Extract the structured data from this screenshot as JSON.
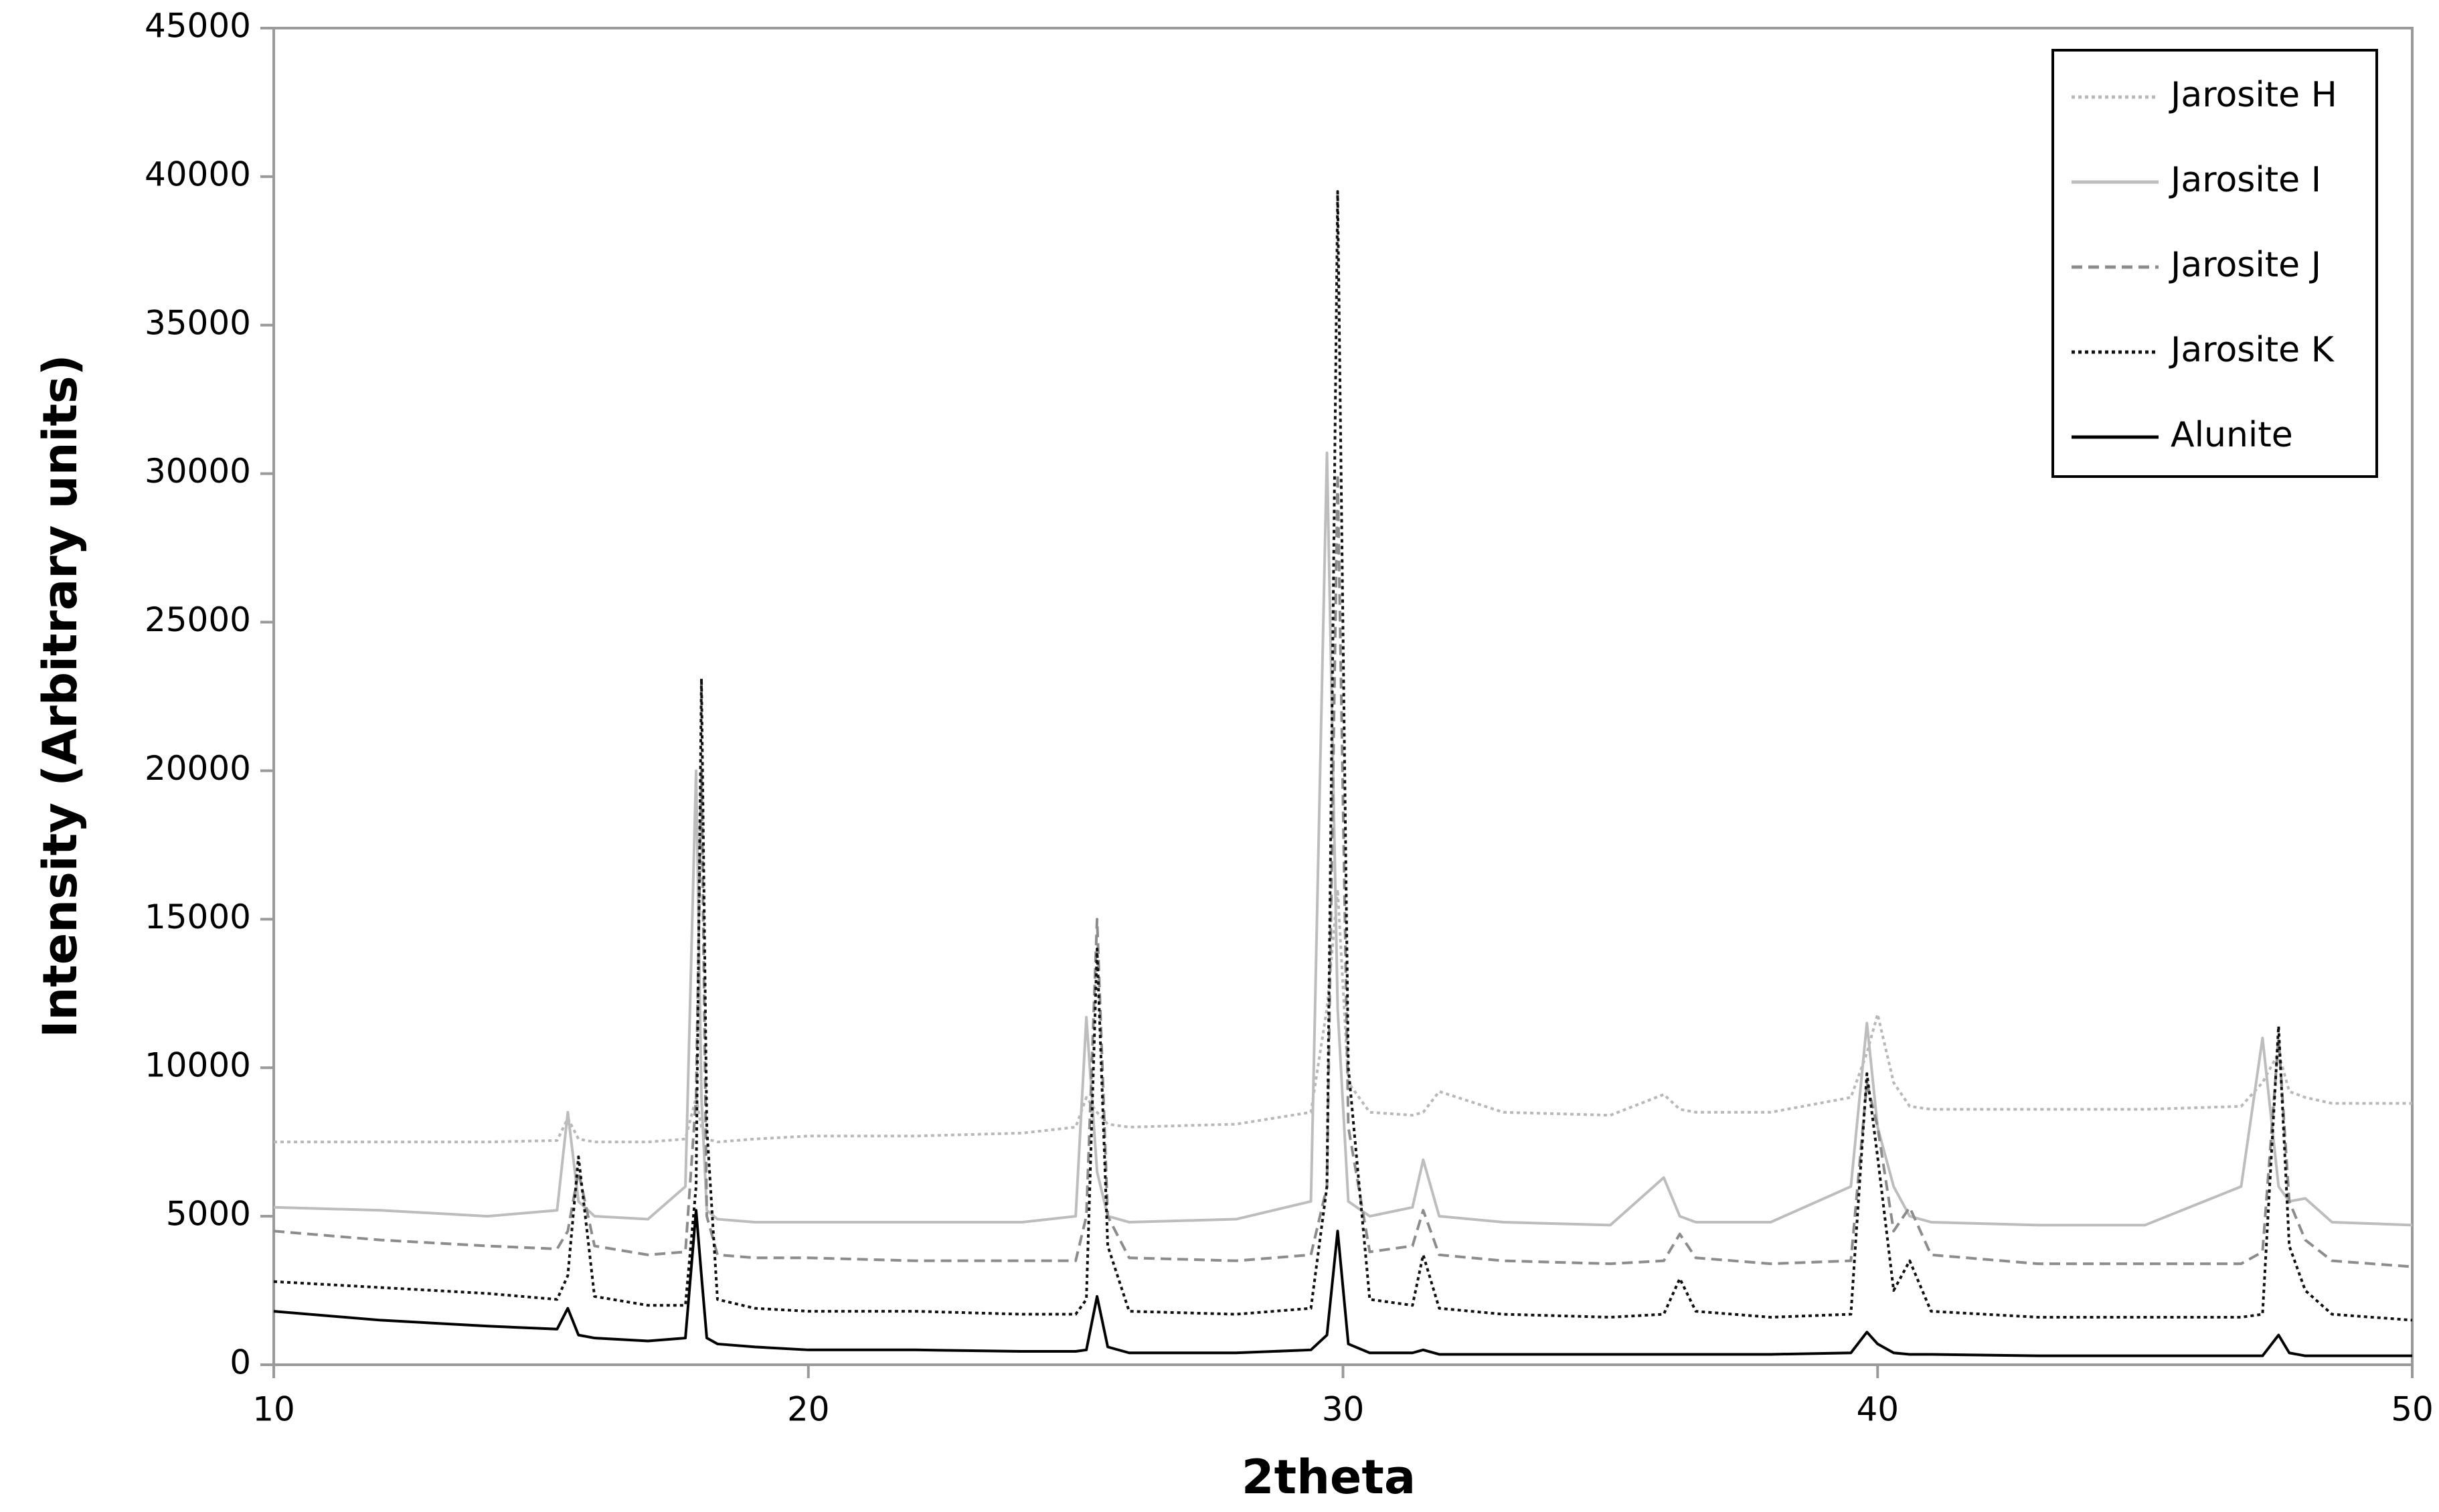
{
  "chart_data": {
    "type": "line",
    "x_label": "2theta",
    "y_label": "Intensity (Arbitrary units)",
    "x": [
      10,
      12,
      14,
      15.3,
      15.5,
      15.7,
      16,
      17,
      17.7,
      17.9,
      18.0,
      18.1,
      18.3,
      19,
      20,
      22,
      24,
      25.0,
      25.2,
      25.4,
      25.6,
      26,
      28,
      29.4,
      29.7,
      29.9,
      30.1,
      30.5,
      31.3,
      31.5,
      31.8,
      33,
      35,
      36.0,
      36.3,
      36.6,
      38,
      39.5,
      39.8,
      40.0,
      40.3,
      40.6,
      41,
      43,
      45,
      46.8,
      47.2,
      47.5,
      47.7,
      48.0,
      48.5,
      50
    ],
    "series": [
      {
        "name": "Jarosite H",
        "color": "#b8b8b8",
        "dash": "dotted",
        "values": [
          7500,
          7500,
          7500,
          7550,
          8300,
          7600,
          7500,
          7500,
          7600,
          9000,
          8000,
          7600,
          7500,
          7600,
          7700,
          7700,
          7800,
          8000,
          9000,
          8500,
          8100,
          8000,
          8100,
          8500,
          12000,
          16000,
          9500,
          8500,
          8400,
          8500,
          9200,
          8500,
          8400,
          9100,
          8600,
          8500,
          8500,
          9000,
          10500,
          11800,
          9500,
          8700,
          8600,
          8600,
          8600,
          8700,
          9500,
          10500,
          9200,
          9000,
          8800,
          8800
        ]
      },
      {
        "name": "Jarosite I",
        "color": "#bdbdbd",
        "dash": "solid",
        "values": [
          5300,
          5200,
          5000,
          5200,
          8500,
          5500,
          5000,
          4900,
          6000,
          20000,
          9000,
          5200,
          4900,
          4800,
          4800,
          4800,
          4800,
          5000,
          11700,
          6500,
          5000,
          4800,
          4900,
          5500,
          30700,
          12000,
          5500,
          5000,
          5300,
          6900,
          5000,
          4800,
          4700,
          6300,
          5000,
          4800,
          4800,
          6000,
          11500,
          8000,
          6000,
          5000,
          4800,
          4700,
          4700,
          6000,
          11000,
          6000,
          5500,
          5600,
          4800,
          4700
        ]
      },
      {
        "name": "Jarosite J",
        "color": "#8c8c8c",
        "dash": "dashed",
        "values": [
          4500,
          4200,
          4000,
          3900,
          4500,
          6500,
          4000,
          3700,
          3800,
          9000,
          20000,
          5000,
          3700,
          3600,
          3600,
          3500,
          3500,
          3500,
          5000,
          15000,
          5000,
          3600,
          3500,
          3700,
          6000,
          30000,
          8000,
          3800,
          4000,
          5200,
          3700,
          3500,
          3400,
          3500,
          4400,
          3600,
          3400,
          3500,
          9500,
          8000,
          4500,
          5300,
          3700,
          3400,
          3400,
          3400,
          3800,
          11000,
          5500,
          4200,
          3500,
          3300
        ]
      },
      {
        "name": "Jarosite K",
        "color": "#111111",
        "dash": "dotted",
        "values": [
          2800,
          2600,
          2400,
          2200,
          3000,
          7000,
          2300,
          2000,
          2000,
          6000,
          23100,
          8000,
          2200,
          1900,
          1800,
          1800,
          1700,
          1700,
          2200,
          14000,
          4000,
          1800,
          1700,
          1900,
          6000,
          39500,
          10000,
          2200,
          2000,
          3700,
          1900,
          1700,
          1600,
          1700,
          2900,
          1800,
          1600,
          1700,
          9800,
          7000,
          2500,
          3500,
          1800,
          1600,
          1600,
          1600,
          1700,
          11400,
          4000,
          2500,
          1700,
          1500
        ]
      },
      {
        "name": "Alunite",
        "color": "#000000",
        "dash": "solid",
        "values": [
          1800,
          1500,
          1300,
          1200,
          1900,
          1000,
          900,
          800,
          900,
          5200,
          3000,
          900,
          700,
          600,
          500,
          500,
          450,
          450,
          500,
          2300,
          600,
          400,
          400,
          500,
          1000,
          4500,
          700,
          400,
          400,
          500,
          350,
          350,
          350,
          350,
          350,
          350,
          350,
          400,
          1100,
          700,
          400,
          350,
          350,
          300,
          300,
          300,
          300,
          1000,
          400,
          300,
          300,
          300
        ]
      }
    ],
    "xlim": [
      10,
      50
    ],
    "xticks": [
      10,
      20,
      30,
      40,
      50
    ],
    "ylim": [
      0,
      45000
    ],
    "yticks": [
      0,
      5000,
      10000,
      15000,
      20000,
      25000,
      30000,
      35000,
      40000,
      45000
    ],
    "legend": "upper-right",
    "grid": false
  }
}
